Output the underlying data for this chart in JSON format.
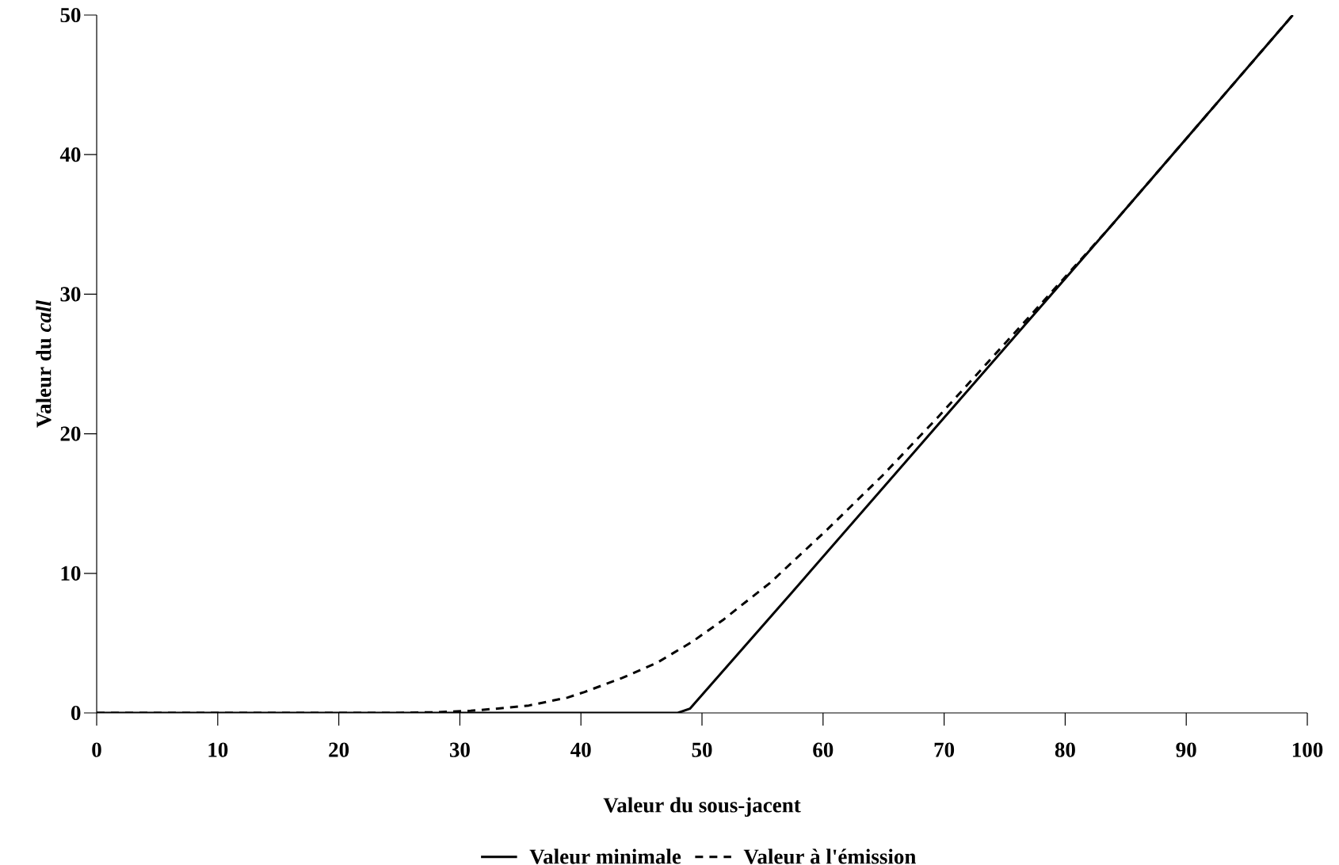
{
  "chart_data": {
    "type": "line",
    "xlabel": "Valeur du sous-jacent",
    "ylabel": "Valeur du *call*",
    "xlim": [
      0,
      100
    ],
    "ylim": [
      0,
      50
    ],
    "xticks": [
      0,
      10,
      20,
      30,
      40,
      50,
      60,
      70,
      80,
      90,
      100
    ],
    "yticks": [
      0,
      10,
      20,
      30,
      40,
      50
    ],
    "legend": "bottom",
    "series": [
      {
        "name": "Valeur minimale",
        "color": "#000000",
        "line_style": "solid",
        "x": [
          0,
          48,
          49,
          57.3,
          83.7,
          98.8
        ],
        "values": [
          0,
          0,
          0.3,
          8.5,
          34.8,
          50
        ]
      },
      {
        "name": "Valeur à l'émission",
        "color": "#000000",
        "line_style": "dashed",
        "x": [
          0,
          25,
          28,
          30.9,
          34,
          35.7,
          38.9,
          40.3,
          43.4,
          46.3,
          49.2,
          51.8,
          53.1,
          55.6,
          60.3,
          64.9,
          69.5,
          73.8,
          78.2,
          83.7,
          98.8
        ],
        "values": [
          0,
          0,
          0.05,
          0.15,
          0.38,
          0.53,
          1.1,
          1.5,
          2.5,
          3.6,
          5.1,
          6.7,
          7.6,
          9.3,
          13.1,
          17,
          21.2,
          25.3,
          29.5,
          34.8,
          50
        ]
      }
    ]
  }
}
